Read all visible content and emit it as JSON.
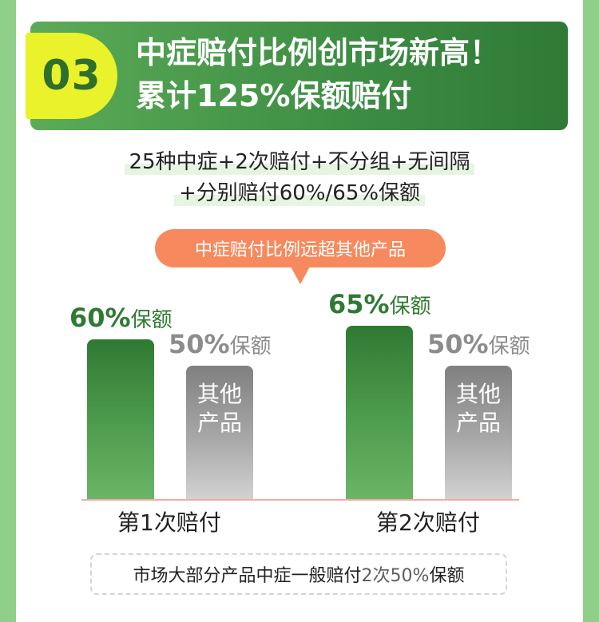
{
  "header": {
    "number": "03",
    "title_line1": "中症赔付比例创市场新高！",
    "title_line2": "累计125%保额赔付"
  },
  "subtitle": {
    "line1": "25种中症+2次赔付+不分组+无间隔",
    "line2": "+分别赔付60%/65%保额"
  },
  "callout": "中症赔付比例远超其他产品",
  "chart_data": {
    "type": "bar",
    "categories": [
      "第1次赔付",
      "第2次赔付"
    ],
    "series": [
      {
        "name": "",
        "values": [
          60,
          65
        ],
        "color": "#3f8f45"
      },
      {
        "name": "其他产品",
        "values": [
          50,
          50
        ],
        "color": "#9a9a9a"
      }
    ],
    "unit": "%",
    "value_label_suffix": "保额",
    "other_bar_text": [
      "其他",
      "产品"
    ],
    "ylim": [
      0,
      100
    ]
  },
  "note": {
    "prefix": "市场大部分产品中症一般赔付",
    "highlight": "2次50%",
    "suffix": "保额"
  },
  "colors": {
    "background": "#8fcf8a",
    "header_green": "#3f8f45",
    "badge_yellow": "#e9f22a",
    "callout_orange": "#f68a5e",
    "baseline": "#f4a9a4"
  }
}
